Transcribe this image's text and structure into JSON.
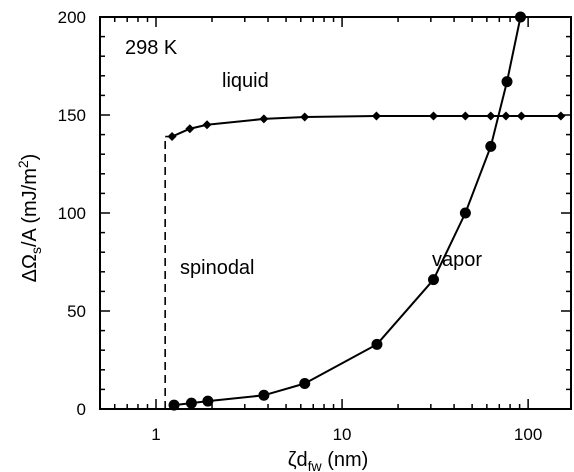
{
  "chart_data": {
    "type": "line",
    "xscale": "log",
    "xlim": [
      0.5,
      170
    ],
    "ylim": [
      0,
      200
    ],
    "xlabel": "ζd",
    "xlabel_sub": "fw",
    "xlabel_unit": " (nm)",
    "ylabel": "ΔΩ",
    "ylabel_sub": "s",
    "ylabel_mid": "/A  (mJ/m",
    "ylabel_sup": "2",
    "ylabel_end": ")",
    "xticks": [
      1,
      10,
      100
    ],
    "xtick_labels": [
      "1",
      "10",
      "100"
    ],
    "yticks": [
      0,
      50,
      100,
      150,
      200
    ],
    "ytick_labels": [
      "0",
      "50",
      "100",
      "150",
      "200"
    ],
    "series": [
      {
        "name": "liquid",
        "marker": "diamond",
        "x": [
          1.22,
          1.52,
          1.88,
          3.8,
          6.3,
          15.3,
          31,
          46,
          63,
          76,
          92,
          150
        ],
        "y": [
          139,
          143,
          145,
          148,
          149,
          149.5,
          149.5,
          149.5,
          149.5,
          149.5,
          149.5,
          149.5
        ]
      },
      {
        "name": "vapor",
        "marker": "circle",
        "x": [
          1.25,
          1.55,
          1.9,
          3.8,
          6.3,
          15.4,
          31,
          46,
          63,
          77,
          91
        ],
        "y": [
          2,
          3,
          4,
          7,
          13,
          33,
          66,
          100,
          134,
          167,
          200
        ]
      }
    ],
    "spinodal": {
      "name": "spinodal",
      "x": 1.12,
      "y": [
        0,
        139
      ]
    },
    "annotations": [
      "298 K",
      "liquid",
      "spinodal",
      "vapor"
    ]
  }
}
